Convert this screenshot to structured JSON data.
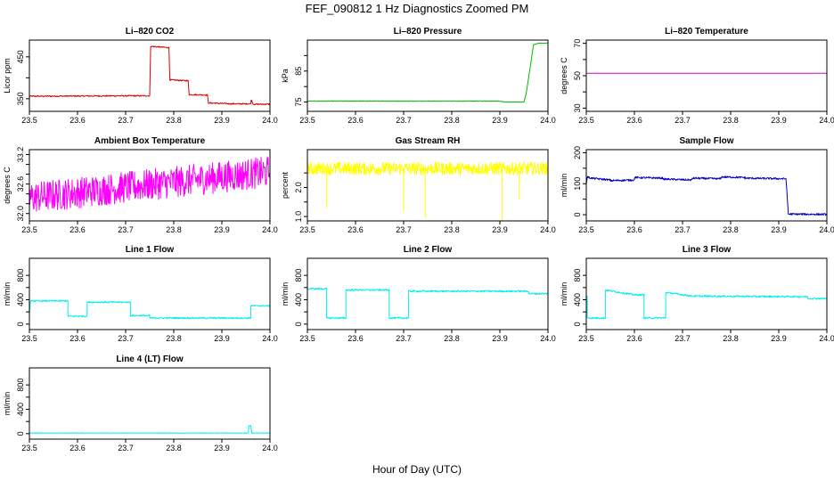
{
  "figure": {
    "title": "FEF_090812  1 Hz Diagnostics Zoomed PM",
    "xlabel": "Hour of Day (UTC)"
  },
  "chart_data": [
    {
      "type": "line",
      "title": "Li–820 CO2",
      "ylabel": "Licor ppm",
      "color": "#dd0000",
      "xlim": [
        23.5,
        24.0
      ],
      "ylim": [
        320,
        490
      ],
      "xticks": [
        "23.5",
        "23.6",
        "23.7",
        "23.8",
        "23.9",
        "24.0"
      ],
      "yticks": [
        {
          "v": 350,
          "label": "350"
        },
        {
          "v": 400,
          "label": ""
        },
        {
          "v": 450,
          "label": "450"
        }
      ],
      "noise": 1.5,
      "x": [
        23.5,
        23.7,
        23.75,
        23.752,
        23.79,
        23.792,
        23.83,
        23.832,
        23.87,
        23.872,
        23.92,
        23.96,
        23.961,
        23.965,
        23.966,
        24.0
      ],
      "y": [
        356,
        357,
        357,
        475,
        472,
        395,
        393,
        360,
        359,
        340,
        338,
        338,
        348,
        338,
        337,
        337
      ]
    },
    {
      "type": "line",
      "title": "Li–820 Pressure",
      "ylabel": "kPa",
      "color": "#00bb00",
      "xlim": [
        23.5,
        24.0
      ],
      "ylim": [
        72,
        95
      ],
      "xticks": [
        "23.5",
        "23.6",
        "23.7",
        "23.8",
        "23.9",
        "24.0"
      ],
      "yticks": [
        {
          "v": 75,
          "label": "75"
        },
        {
          "v": 80,
          "label": ""
        },
        {
          "v": 85,
          "label": "85"
        },
        {
          "v": 90,
          "label": ""
        }
      ],
      "noise": 0.08,
      "x": [
        23.5,
        23.9,
        23.91,
        23.95,
        23.955,
        23.97,
        23.98,
        24.0
      ],
      "y": [
        75.3,
        75.3,
        75.0,
        75.0,
        78,
        93.5,
        94,
        94
      ]
    },
    {
      "type": "line",
      "title": "Li–820 Temperature",
      "ylabel": "degrees C",
      "color": "#cc00cc",
      "xlim": [
        23.5,
        24.0
      ],
      "ylim": [
        28,
        72
      ],
      "xticks": [
        "23.5",
        "23.6",
        "23.7",
        "23.8",
        "23.9",
        "24.0"
      ],
      "yticks": [
        {
          "v": 30,
          "label": "30"
        },
        {
          "v": 40,
          "label": ""
        },
        {
          "v": 50,
          "label": "50"
        },
        {
          "v": 60,
          "label": ""
        },
        {
          "v": 70,
          "label": "70"
        }
      ],
      "noise": 0,
      "x": [
        23.5,
        24.0
      ],
      "y": [
        51.5,
        51.5
      ]
    },
    {
      "type": "line",
      "title": "Ambient Box Temperature",
      "ylabel": "degrees C",
      "color": "#ff00ff",
      "xlim": [
        23.5,
        24.0
      ],
      "ylim": [
        31.85,
        33.3
      ],
      "xticks": [
        "23.5",
        "23.6",
        "23.7",
        "23.8",
        "23.9",
        "24.0"
      ],
      "yticks": [
        {
          "v": 32.0,
          "label": "32.0"
        },
        {
          "v": 32.2,
          "label": ""
        },
        {
          "v": 32.4,
          "label": ""
        },
        {
          "v": 32.6,
          "label": "32.6"
        },
        {
          "v": 32.8,
          "label": ""
        },
        {
          "v": 33.0,
          "label": ""
        },
        {
          "v": 33.2,
          "label": "33.2"
        }
      ],
      "noise": 0.32,
      "x": [
        23.5,
        24.0
      ],
      "y": [
        32.32,
        32.85
      ]
    },
    {
      "type": "line",
      "title": "Gas Stream RH",
      "ylabel": "percent",
      "color": "#ffff00",
      "xlim": [
        23.5,
        24.0
      ],
      "ylim": [
        0.85,
        3.3
      ],
      "xticks": [
        "23.5",
        "23.6",
        "23.7",
        "23.8",
        "23.9",
        "24.0"
      ],
      "yticks": [
        {
          "v": 1.0,
          "label": "1.0"
        },
        {
          "v": 1.5,
          "label": ""
        },
        {
          "v": 2.0,
          "label": "2.0"
        },
        {
          "v": 2.5,
          "label": ""
        }
      ],
      "noise": 0.22,
      "x": [
        23.5,
        24.0
      ],
      "y": [
        2.65,
        2.65
      ],
      "spikes": [
        {
          "x": 23.54,
          "y": 1.3
        },
        {
          "x": 23.7,
          "y": 1.15
        },
        {
          "x": 23.745,
          "y": 0.95
        },
        {
          "x": 23.905,
          "y": 0.85
        },
        {
          "x": 23.94,
          "y": 1.6
        }
      ]
    },
    {
      "type": "line",
      "title": "Sample Flow",
      "ylabel": "ml/min",
      "color": "#0000bb",
      "xlim": [
        23.5,
        24.0
      ],
      "ylim": [
        -20,
        210
      ],
      "xticks": [
        "23.5",
        "23.6",
        "23.7",
        "23.8",
        "23.9",
        "24.0"
      ],
      "yticks": [
        {
          "v": 0,
          "label": "0"
        },
        {
          "v": 50,
          "label": ""
        },
        {
          "v": 100,
          "label": "100"
        },
        {
          "v": 150,
          "label": ""
        },
        {
          "v": 200,
          "label": "200"
        }
      ],
      "noise": 3,
      "x": [
        23.5,
        23.502,
        23.51,
        23.55,
        23.55,
        23.6,
        23.6,
        23.66,
        23.66,
        23.72,
        23.72,
        23.78,
        23.78,
        23.83,
        23.83,
        23.915,
        23.915,
        23.92,
        24.0
      ],
      "y": [
        100,
        122,
        118,
        112,
        110,
        112,
        120,
        118,
        115,
        112,
        118,
        116,
        122,
        120,
        118,
        116,
        116,
        2,
        1
      ]
    },
    {
      "type": "line",
      "title": "Line 1 Flow",
      "ylabel": "ml/min",
      "color": "#00eeee",
      "xlim": [
        23.5,
        24.0
      ],
      "ylim": [
        -90,
        1080
      ],
      "xticks": [
        "23.5",
        "23.6",
        "23.7",
        "23.8",
        "23.9",
        "24.0"
      ],
      "yticks": [
        {
          "v": 0,
          "label": "0"
        },
        {
          "v": 200,
          "label": ""
        },
        {
          "v": 400,
          "label": "400"
        },
        {
          "v": 600,
          "label": ""
        },
        {
          "v": 800,
          "label": "800"
        }
      ],
      "noise": 12,
      "x": [
        23.5,
        23.502,
        23.58,
        23.58,
        23.62,
        23.62,
        23.71,
        23.71,
        23.75,
        23.75,
        23.96,
        23.96,
        24.0
      ],
      "y": [
        160,
        380,
        380,
        130,
        130,
        360,
        360,
        140,
        140,
        100,
        100,
        300,
        300
      ]
    },
    {
      "type": "line",
      "title": "Line 2 Flow",
      "ylabel": "ml/min",
      "color": "#00eeee",
      "xlim": [
        23.5,
        24.0
      ],
      "ylim": [
        -90,
        1080
      ],
      "xticks": [
        "23.5",
        "23.6",
        "23.7",
        "23.8",
        "23.9",
        "24.0"
      ],
      "yticks": [
        {
          "v": 0,
          "label": "0"
        },
        {
          "v": 200,
          "label": ""
        },
        {
          "v": 400,
          "label": "400"
        },
        {
          "v": 600,
          "label": ""
        },
        {
          "v": 800,
          "label": "800"
        }
      ],
      "noise": 14,
      "x": [
        23.5,
        23.54,
        23.54,
        23.58,
        23.58,
        23.67,
        23.67,
        23.71,
        23.71,
        23.96,
        23.96,
        24.0
      ],
      "y": [
        580,
        580,
        100,
        100,
        560,
        560,
        100,
        100,
        540,
        540,
        500,
        500
      ]
    },
    {
      "type": "line",
      "title": "Line 3 Flow",
      "ylabel": "ml/min",
      "color": "#00eeee",
      "xlim": [
        23.5,
        24.0
      ],
      "ylim": [
        -90,
        1080
      ],
      "xticks": [
        "23.5",
        "23.6",
        "23.7",
        "23.8",
        "23.9",
        "24.0"
      ],
      "yticks": [
        {
          "v": 0,
          "label": "0"
        },
        {
          "v": 200,
          "label": ""
        },
        {
          "v": 400,
          "label": "400"
        },
        {
          "v": 600,
          "label": ""
        },
        {
          "v": 800,
          "label": "800"
        }
      ],
      "noise": 14,
      "x": [
        23.5,
        23.502,
        23.502,
        23.54,
        23.54,
        23.6,
        23.62,
        23.62,
        23.665,
        23.665,
        23.72,
        23.96,
        23.96,
        24.0
      ],
      "y": [
        460,
        460,
        100,
        100,
        560,
        480,
        480,
        100,
        100,
        520,
        460,
        450,
        420,
        420
      ]
    },
    {
      "type": "line",
      "title": "Line 4 (LT) Flow",
      "ylabel": "ml/min",
      "color": "#00eeee",
      "xlim": [
        23.5,
        24.0
      ],
      "ylim": [
        -90,
        1080
      ],
      "xticks": [
        "23.5",
        "23.6",
        "23.7",
        "23.8",
        "23.9",
        "24.0"
      ],
      "yticks": [
        {
          "v": 0,
          "label": "0"
        },
        {
          "v": 200,
          "label": ""
        },
        {
          "v": 400,
          "label": "400"
        },
        {
          "v": 600,
          "label": ""
        },
        {
          "v": 800,
          "label": "800"
        }
      ],
      "noise": 4,
      "x": [
        23.5,
        23.955,
        23.956,
        23.96,
        23.962,
        24.0
      ],
      "y": [
        10,
        10,
        130,
        130,
        10,
        10
      ]
    }
  ]
}
